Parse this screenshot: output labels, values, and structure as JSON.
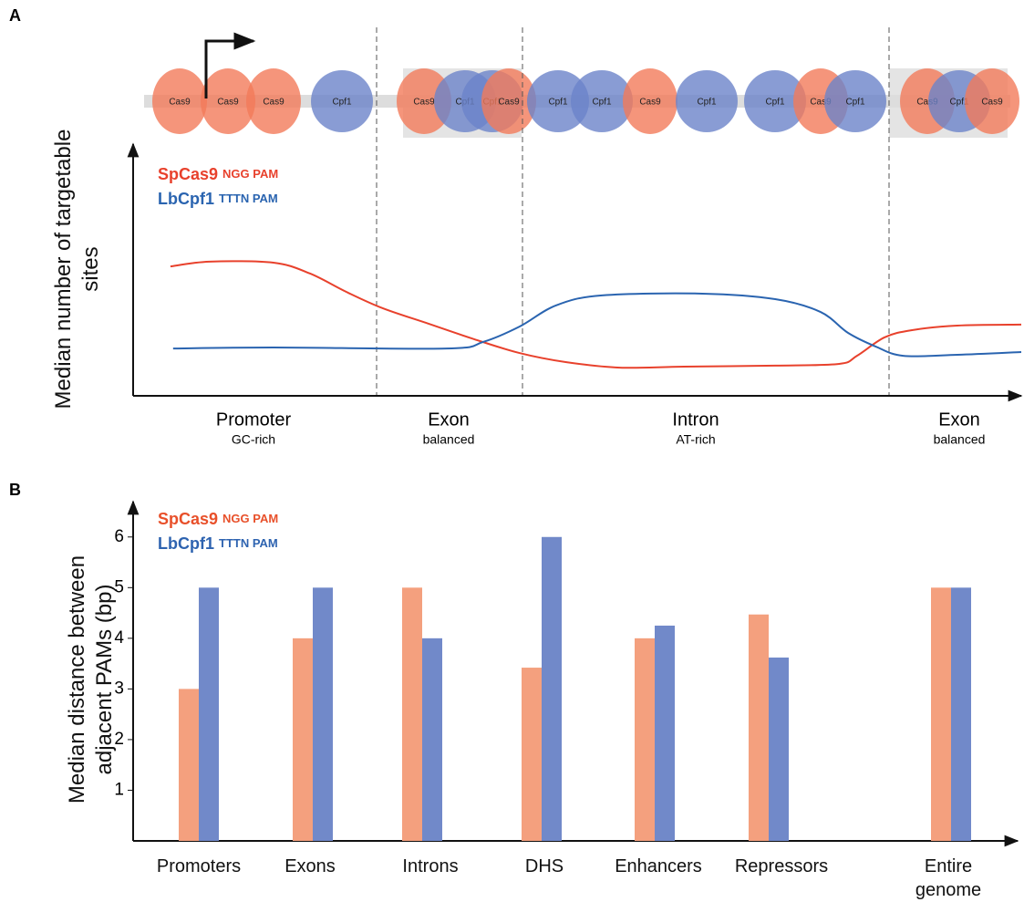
{
  "chart_data": [
    {
      "type": "line",
      "label": "A",
      "y_label": "Median number of targetable sites",
      "categories": [
        "Promoter",
        "Exon",
        "Intron",
        "Exon"
      ],
      "category_notes": [
        "GC-rich",
        "balanced",
        "AT-rich",
        "balanced"
      ],
      "protein_track": [
        "Cas9",
        "Cas9",
        "Cas9",
        "Cpf1",
        "Cas9",
        "Cpf1",
        "Cpf1",
        "Cas9",
        "Cpf1",
        "Cpf1",
        "Cas9",
        "Cpf1",
        "Cpf1",
        "Cas9",
        "Cpf1",
        "Cas9",
        "Cpf1",
        "Cas9"
      ],
      "xlim": [
        0,
        100
      ],
      "ylim": [
        0,
        100
      ],
      "series": [
        {
          "name": "SpCas9",
          "pam": "NGG PAM",
          "color": "#e8412c",
          "x": [
            4.2,
            8.6,
            15.8,
            19.9,
            24.0,
            28.1,
            33.3,
            38.4,
            43.5,
            48.7,
            54.8,
            62.0,
            72.3,
            79.5,
            81.5,
            84.6,
            87.7,
            92.8,
            100
          ],
          "values": [
            51.4,
            53.3,
            52.9,
            48.6,
            41.3,
            34.8,
            28.6,
            22.5,
            17.0,
            13.4,
            11.2,
            11.6,
            12.0,
            12.7,
            15.9,
            23.2,
            26.1,
            27.9,
            28.3
          ]
        },
        {
          "name": "LbCpf1",
          "pam": "TTTN PAM",
          "color": "#2a64b0",
          "x": [
            4.5,
            15.8,
            35.3,
            39.4,
            43.5,
            47.6,
            52.8,
            64.1,
            72.3,
            77.4,
            80.5,
            83.6,
            86.7,
            92.8,
            100
          ],
          "values": [
            18.8,
            19.2,
            18.8,
            21.4,
            27.5,
            35.9,
            39.9,
            40.6,
            38.4,
            33.3,
            25.0,
            19.6,
            15.9,
            16.3,
            17.4
          ]
        }
      ]
    },
    {
      "type": "bar",
      "label": "B",
      "y_label": "Median distance between adjacent PAMs (bp)",
      "categories": [
        "Promoters",
        "Exons",
        "Introns",
        "DHS",
        "Enhancers",
        "Repressors",
        "Entire genome"
      ],
      "ylim": [
        0,
        6.5
      ],
      "yticks": [
        1,
        2,
        3,
        4,
        5,
        6
      ],
      "series": [
        {
          "name": "SpCas9",
          "pam": "NGG PAM",
          "color": "#f4a07e",
          "values": [
            3,
            4,
            5,
            3.42,
            4,
            4.47,
            5
          ]
        },
        {
          "name": "LbCpf1",
          "pam": "TTTN PAM",
          "color": "#7189c9",
          "values": [
            5,
            5,
            4,
            6,
            4.25,
            3.62,
            5
          ]
        }
      ]
    }
  ]
}
